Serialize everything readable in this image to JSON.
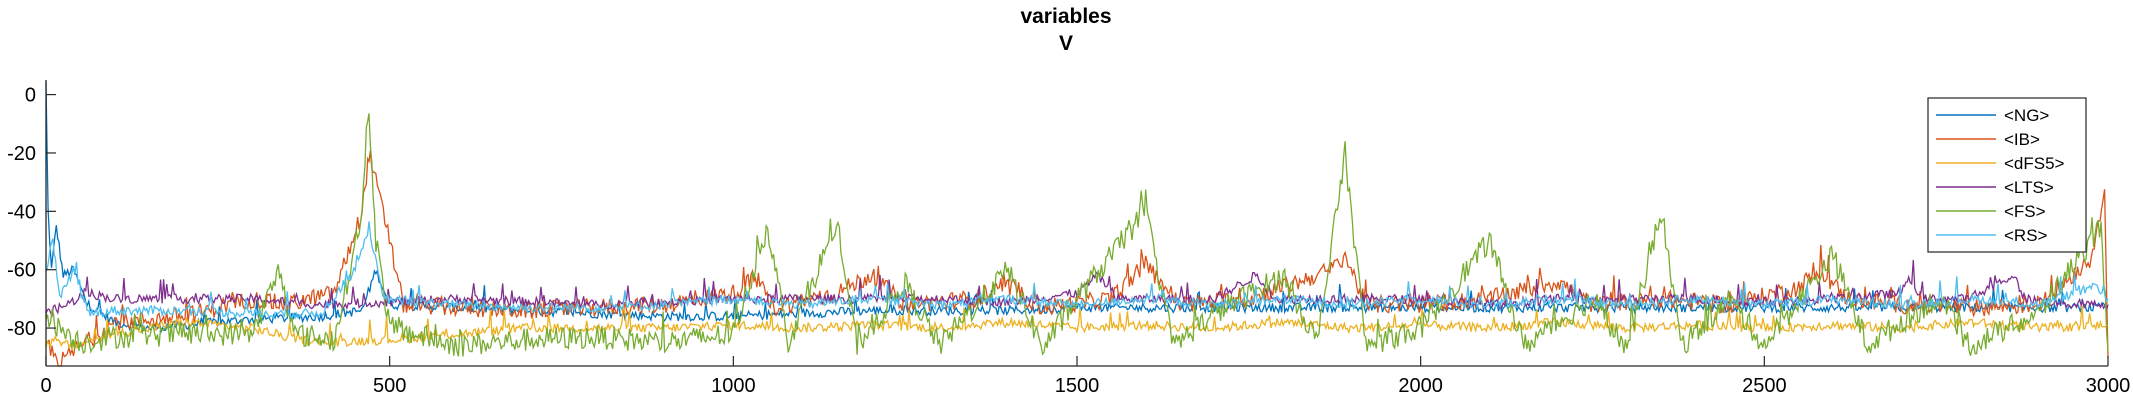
{
  "chart_data": {
    "type": "line",
    "title": "variables",
    "subtitle": "V",
    "xlabel": "",
    "ylabel": "",
    "xlim": [
      0,
      3000
    ],
    "ylim": [
      -93,
      5
    ],
    "xticks": [
      0,
      500,
      1000,
      1500,
      2000,
      2500,
      3000
    ],
    "yticks": [
      0,
      -20,
      -40,
      -60,
      -80
    ],
    "grid": false,
    "legend_position": "top-right",
    "series": [
      {
        "name": "<NG>",
        "color": "#0072BD",
        "points": [
          [
            0,
            4
          ],
          [
            3,
            -40
          ],
          [
            8,
            -60
          ],
          [
            15,
            -45
          ],
          [
            25,
            -62
          ],
          [
            40,
            -60
          ],
          [
            60,
            -72
          ],
          [
            100,
            -78
          ],
          [
            150,
            -80
          ],
          [
            200,
            -79
          ],
          [
            250,
            -78
          ],
          [
            300,
            -77
          ],
          [
            400,
            -76
          ],
          [
            460,
            -74
          ],
          [
            480,
            -60
          ],
          [
            500,
            -72
          ],
          [
            600,
            -73
          ],
          [
            700,
            -74
          ],
          [
            800,
            -75
          ],
          [
            900,
            -76
          ],
          [
            1000,
            -76
          ],
          [
            1100,
            -75
          ],
          [
            1200,
            -74
          ],
          [
            1300,
            -74
          ],
          [
            1400,
            -74
          ],
          [
            1500,
            -73
          ],
          [
            1600,
            -73
          ],
          [
            1700,
            -73
          ],
          [
            1800,
            -73
          ],
          [
            1900,
            -73
          ],
          [
            2000,
            -73
          ],
          [
            2100,
            -73
          ],
          [
            2200,
            -73
          ],
          [
            2300,
            -73
          ],
          [
            2400,
            -73
          ],
          [
            2500,
            -73
          ],
          [
            2600,
            -73
          ],
          [
            2700,
            -73
          ],
          [
            2800,
            -73
          ],
          [
            2900,
            -73
          ],
          [
            3000,
            -73
          ]
        ]
      },
      {
        "name": "<IB>",
        "color": "#D95319",
        "points": [
          [
            0,
            -85
          ],
          [
            20,
            -92
          ],
          [
            40,
            -88
          ],
          [
            100,
            -78
          ],
          [
            200,
            -76
          ],
          [
            300,
            -70
          ],
          [
            350,
            -72
          ],
          [
            420,
            -68
          ],
          [
            460,
            -40
          ],
          [
            470,
            -20
          ],
          [
            480,
            -30
          ],
          [
            495,
            -45
          ],
          [
            520,
            -72
          ],
          [
            600,
            -73
          ],
          [
            700,
            -74
          ],
          [
            800,
            -73
          ],
          [
            900,
            -72
          ],
          [
            1000,
            -68
          ],
          [
            1030,
            -63
          ],
          [
            1060,
            -73
          ],
          [
            1150,
            -68
          ],
          [
            1200,
            -62
          ],
          [
            1250,
            -72
          ],
          [
            1350,
            -70
          ],
          [
            1400,
            -66
          ],
          [
            1450,
            -73
          ],
          [
            1550,
            -70
          ],
          [
            1600,
            -58
          ],
          [
            1650,
            -72
          ],
          [
            1750,
            -70
          ],
          [
            1800,
            -66
          ],
          [
            1870,
            -60
          ],
          [
            1890,
            -55
          ],
          [
            1920,
            -72
          ],
          [
            2000,
            -72
          ],
          [
            2100,
            -70
          ],
          [
            2200,
            -64
          ],
          [
            2250,
            -72
          ],
          [
            2350,
            -70
          ],
          [
            2450,
            -72
          ],
          [
            2550,
            -66
          ],
          [
            2580,
            -60
          ],
          [
            2620,
            -70
          ],
          [
            2700,
            -72
          ],
          [
            2800,
            -73
          ],
          [
            2900,
            -72
          ],
          [
            2980,
            -55
          ],
          [
            2995,
            -30
          ],
          [
            3000,
            -90
          ]
        ]
      },
      {
        "name": "<dFS5>",
        "color": "#EDB120",
        "points": [
          [
            0,
            -85
          ],
          [
            40,
            -86
          ],
          [
            100,
            -82
          ],
          [
            200,
            -78
          ],
          [
            300,
            -80
          ],
          [
            350,
            -83
          ],
          [
            400,
            -85
          ],
          [
            500,
            -84
          ],
          [
            600,
            -82
          ],
          [
            700,
            -80
          ],
          [
            800,
            -80
          ],
          [
            900,
            -80
          ],
          [
            1000,
            -79
          ],
          [
            1100,
            -80
          ],
          [
            1200,
            -79
          ],
          [
            1300,
            -80
          ],
          [
            1400,
            -78
          ],
          [
            1500,
            -80
          ],
          [
            1600,
            -79
          ],
          [
            1700,
            -80
          ],
          [
            1800,
            -78
          ],
          [
            1900,
            -80
          ],
          [
            2000,
            -79
          ],
          [
            2100,
            -80
          ],
          [
            2200,
            -78
          ],
          [
            2300,
            -80
          ],
          [
            2400,
            -79
          ],
          [
            2500,
            -80
          ],
          [
            2600,
            -79
          ],
          [
            2700,
            -80
          ],
          [
            2800,
            -78
          ],
          [
            2900,
            -80
          ],
          [
            3000,
            -79
          ]
        ]
      },
      {
        "name": "<LTS>",
        "color": "#7E2F8E",
        "points": [
          [
            0,
            -75
          ],
          [
            30,
            -72
          ],
          [
            60,
            -68
          ],
          [
            100,
            -70
          ],
          [
            200,
            -70
          ],
          [
            300,
            -70
          ],
          [
            400,
            -72
          ],
          [
            500,
            -71
          ],
          [
            600,
            -70
          ],
          [
            700,
            -71
          ],
          [
            800,
            -72
          ],
          [
            900,
            -71
          ],
          [
            1000,
            -70
          ],
          [
            1100,
            -70
          ],
          [
            1200,
            -70
          ],
          [
            1300,
            -70
          ],
          [
            1400,
            -71
          ],
          [
            1500,
            -68
          ],
          [
            1530,
            -62
          ],
          [
            1560,
            -70
          ],
          [
            1700,
            -70
          ],
          [
            1760,
            -62
          ],
          [
            1790,
            -70
          ],
          [
            1900,
            -70
          ],
          [
            2000,
            -70
          ],
          [
            2100,
            -72
          ],
          [
            2200,
            -70
          ],
          [
            2300,
            -70
          ],
          [
            2400,
            -70
          ],
          [
            2500,
            -71
          ],
          [
            2600,
            -70
          ],
          [
            2700,
            -68
          ],
          [
            2710,
            -62
          ],
          [
            2730,
            -70
          ],
          [
            2800,
            -70
          ],
          [
            2860,
            -62
          ],
          [
            2880,
            -70
          ],
          [
            2950,
            -72
          ],
          [
            3000,
            -72
          ]
        ]
      },
      {
        "name": "<FS>",
        "color": "#77AC30",
        "points": [
          [
            0,
            -75
          ],
          [
            20,
            -80
          ],
          [
            50,
            -85
          ],
          [
            100,
            -83
          ],
          [
            200,
            -82
          ],
          [
            300,
            -82
          ],
          [
            340,
            -60
          ],
          [
            360,
            -82
          ],
          [
            420,
            -84
          ],
          [
            460,
            -40
          ],
          [
            470,
            -5
          ],
          [
            480,
            -50
          ],
          [
            500,
            -80
          ],
          [
            600,
            -86
          ],
          [
            700,
            -84
          ],
          [
            800,
            -83
          ],
          [
            900,
            -85
          ],
          [
            1000,
            -82
          ],
          [
            1050,
            -45
          ],
          [
            1080,
            -85
          ],
          [
            1150,
            -44
          ],
          [
            1180,
            -86
          ],
          [
            1250,
            -65
          ],
          [
            1300,
            -86
          ],
          [
            1400,
            -60
          ],
          [
            1450,
            -87
          ],
          [
            1500,
            -70
          ],
          [
            1600,
            -40
          ],
          [
            1640,
            -86
          ],
          [
            1700,
            -75
          ],
          [
            1800,
            -62
          ],
          [
            1850,
            -85
          ],
          [
            1890,
            -20
          ],
          [
            1920,
            -86
          ],
          [
            2000,
            -80
          ],
          [
            2100,
            -50
          ],
          [
            2150,
            -86
          ],
          [
            2250,
            -70
          ],
          [
            2300,
            -87
          ],
          [
            2350,
            -40
          ],
          [
            2380,
            -86
          ],
          [
            2450,
            -70
          ],
          [
            2500,
            -86
          ],
          [
            2600,
            -55
          ],
          [
            2650,
            -86
          ],
          [
            2750,
            -70
          ],
          [
            2800,
            -86
          ],
          [
            2900,
            -75
          ],
          [
            2990,
            -45
          ],
          [
            3000,
            -88
          ]
        ]
      },
      {
        "name": "<RS>",
        "color": "#4DBEEE",
        "points": [
          [
            0,
            -60
          ],
          [
            10,
            -50
          ],
          [
            20,
            -70
          ],
          [
            40,
            -60
          ],
          [
            60,
            -75
          ],
          [
            100,
            -74
          ],
          [
            200,
            -74
          ],
          [
            300,
            -75
          ],
          [
            400,
            -75
          ],
          [
            450,
            -60
          ],
          [
            470,
            -45
          ],
          [
            490,
            -70
          ],
          [
            600,
            -72
          ],
          [
            700,
            -73
          ],
          [
            800,
            -73
          ],
          [
            900,
            -72
          ],
          [
            1000,
            -70
          ],
          [
            1100,
            -72
          ],
          [
            1200,
            -70
          ],
          [
            1300,
            -72
          ],
          [
            1400,
            -70
          ],
          [
            1500,
            -72
          ],
          [
            1600,
            -70
          ],
          [
            1700,
            -72
          ],
          [
            1800,
            -70
          ],
          [
            1900,
            -72
          ],
          [
            2000,
            -70
          ],
          [
            2100,
            -72
          ],
          [
            2200,
            -70
          ],
          [
            2300,
            -72
          ],
          [
            2400,
            -70
          ],
          [
            2500,
            -72
          ],
          [
            2600,
            -70
          ],
          [
            2700,
            -72
          ],
          [
            2800,
            -70
          ],
          [
            2900,
            -72
          ],
          [
            2980,
            -66
          ],
          [
            3000,
            -70
          ]
        ]
      }
    ]
  }
}
